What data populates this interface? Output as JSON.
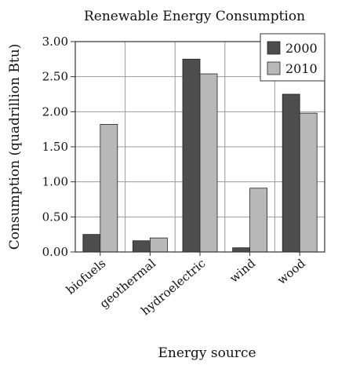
{
  "chart_data": {
    "type": "bar",
    "title": "Renewable Energy Consumption",
    "xlabel": "Energy source",
    "ylabel": "Consumption (quadrillion Btu)",
    "categories": [
      "biofuels",
      "geothermal",
      "hydroelectric",
      "wind",
      "wood"
    ],
    "series": [
      {
        "name": "2000",
        "values": [
          0.25,
          0.16,
          2.75,
          0.06,
          2.25
        ],
        "color": "#4d4d4d"
      },
      {
        "name": "2010",
        "values": [
          1.82,
          0.2,
          2.54,
          0.91,
          1.98
        ],
        "color": "#b8b8b8"
      }
    ],
    "ylim": [
      0,
      3
    ],
    "yticks": [
      "0.00",
      "0.50",
      "1.00",
      "1.50",
      "2.00",
      "2.50",
      "3.00"
    ],
    "grid": true,
    "legend_position": "top-right",
    "colors": {
      "grid": "#999999",
      "axis": "#333333",
      "bar_stroke": "#222222"
    }
  }
}
